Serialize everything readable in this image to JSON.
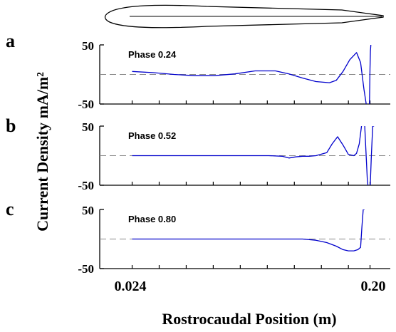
{
  "figure": {
    "panel_letters": [
      "a",
      "b",
      "c"
    ],
    "y_axis_label": "Current Density mA/m²",
    "x_axis_label": "Rostrocaudal Position (m)",
    "x_tick_labels": [
      "0.024",
      "0.20"
    ]
  },
  "chart_data": [
    {
      "type": "line",
      "annotation": "Phase 0.24",
      "ylim": [
        -50,
        50
      ],
      "y_tick_labels": [
        "50",
        "-50"
      ],
      "xlim": [
        0.0,
        0.215
      ],
      "x_ticks": [
        0.024,
        0.2
      ],
      "baseline": 0,
      "series": [
        {
          "color": "#0000cc",
          "x": [
            0.024,
            0.04,
            0.055,
            0.07,
            0.085,
            0.1,
            0.115,
            0.13,
            0.14,
            0.15,
            0.16,
            0.17,
            0.175,
            0.18,
            0.185,
            0.19,
            0.193,
            0.1955,
            0.198,
            0.1995,
            0.2,
            0.2003,
            0.2006
          ],
          "y": [
            5,
            3,
            0,
            -2,
            -2,
            1,
            6,
            6,
            1,
            -6,
            -12,
            -14,
            -10,
            5,
            25,
            37,
            20,
            -25,
            -62,
            -62,
            10,
            40,
            50
          ]
        }
      ]
    },
    {
      "type": "line",
      "annotation": "Phase 0.52",
      "ylim": [
        -50,
        50
      ],
      "y_tick_labels": [
        "50",
        "-50"
      ],
      "xlim": [
        0.0,
        0.215
      ],
      "x_ticks": [
        0.024,
        0.2
      ],
      "baseline": 0,
      "series": [
        {
          "color": "#0000cc",
          "x": [
            0.024,
            0.07,
            0.11,
            0.125,
            0.135,
            0.14,
            0.145,
            0.15,
            0.155,
            0.16,
            0.168,
            0.172,
            0.176,
            0.18,
            0.184,
            0.188,
            0.19,
            0.192,
            0.194,
            0.196,
            0.198,
            0.199,
            0.2,
            0.201,
            0.202,
            0.203
          ],
          "y": [
            0,
            0,
            0,
            0,
            -1,
            -4,
            -2,
            -1,
            -1,
            0,
            5,
            20,
            32,
            18,
            2,
            0,
            4,
            20,
            55,
            55,
            -40,
            -62,
            -62,
            0,
            50,
            50
          ]
        }
      ]
    },
    {
      "type": "line",
      "annotation": "Phase 0.80",
      "ylim": [
        -50,
        50
      ],
      "y_tick_labels": [
        "50",
        "-50"
      ],
      "xlim": [
        0.0,
        0.215
      ],
      "x_ticks": [
        0.024,
        0.2
      ],
      "baseline": 0,
      "series": [
        {
          "color": "#0000cc",
          "x": [
            0.024,
            0.07,
            0.11,
            0.13,
            0.15,
            0.16,
            0.168,
            0.175,
            0.18,
            0.184,
            0.188,
            0.191,
            0.193,
            0.194,
            0.195,
            0.196
          ],
          "y": [
            0,
            0,
            0,
            0,
            0,
            -2,
            -6,
            -12,
            -18,
            -20,
            -20,
            -18,
            -14,
            20,
            50,
            50
          ]
        }
      ]
    }
  ]
}
